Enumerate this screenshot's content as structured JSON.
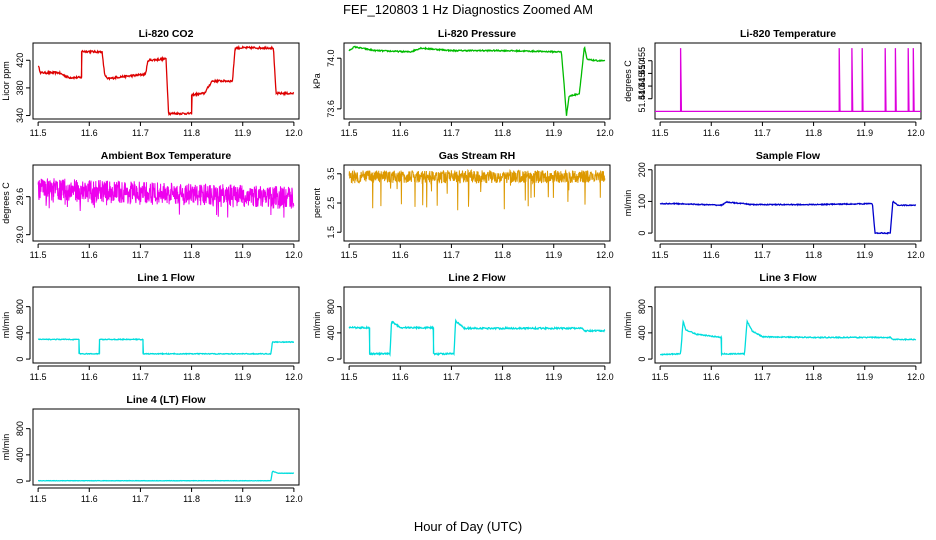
{
  "figure": {
    "title": "FEF_120803  1 Hz Diagnostics Zoomed AM",
    "xlabel": "Hour of Day (UTC)"
  },
  "chart_data": [
    {
      "type": "line",
      "title": "Li-820 CO2",
      "ylabel": "Licor ppm",
      "color": "#dd0000",
      "xlim": [
        11.49,
        12.01
      ],
      "ylim": [
        335,
        445
      ],
      "xticks": [
        "11.5",
        "11.6",
        "11.7",
        "11.8",
        "11.9",
        "12.0"
      ],
      "yticks": [
        "340",
        "380",
        "420"
      ],
      "x": [
        11.5,
        11.505,
        11.54,
        11.56,
        11.585,
        11.585,
        11.625,
        11.63,
        11.635,
        11.66,
        11.69,
        11.71,
        11.715,
        11.75,
        11.755,
        11.8,
        11.8,
        11.825,
        11.84,
        11.88,
        11.885,
        11.96,
        11.965,
        12.0
      ],
      "y": [
        412,
        402,
        402,
        395,
        395,
        433,
        432,
        400,
        393,
        396,
        398,
        400,
        420,
        422,
        343,
        343,
        370,
        372,
        390,
        390,
        438,
        438,
        372,
        372
      ],
      "noise": 1.5
    },
    {
      "type": "line",
      "title": "Li-820 Pressure",
      "ylabel": "kPa",
      "color": "#00bb00",
      "xlim": [
        11.49,
        12.01
      ],
      "ylim": [
        73.52,
        74.12
      ],
      "xticks": [
        "11.5",
        "11.6",
        "11.7",
        "11.8",
        "11.9",
        "12.0"
      ],
      "yticks": [
        "73.6",
        "74.0"
      ],
      "x": [
        11.5,
        11.51,
        11.55,
        11.62,
        11.64,
        11.7,
        11.8,
        11.915,
        11.925,
        11.93,
        11.95,
        11.96,
        11.965,
        11.985,
        12.0
      ],
      "y": [
        74.06,
        74.09,
        74.06,
        74.05,
        74.08,
        74.06,
        74.06,
        74.05,
        73.55,
        73.7,
        73.72,
        74.09,
        73.99,
        73.98,
        73.98
      ],
      "noise": 0.005
    },
    {
      "type": "spikes",
      "title": "Li-820 Temperature",
      "ylabel": "degrees C",
      "color": "#dd00dd",
      "xlim": [
        11.49,
        12.01
      ],
      "ylim": [
        51.432,
        51.462
      ],
      "xticks": [
        "11.5",
        "11.6",
        "11.7",
        "11.8",
        "11.9",
        "12.0"
      ],
      "yticks": [
        "51.440",
        "51.445",
        "51.450",
        "51.455"
      ],
      "baseline": 51.435,
      "peak": 51.46,
      "spike_x": [
        11.54,
        11.85,
        11.875,
        11.895,
        11.94,
        11.96,
        11.985,
        11.995
      ]
    },
    {
      "type": "noisy",
      "title": "Ambient Box Temperature",
      "ylabel": "degrees C",
      "color": "#ee00ee",
      "xlim": [
        11.49,
        12.01
      ],
      "ylim": [
        28.9,
        30.1
      ],
      "xticks": [
        "11.5",
        "11.6",
        "11.7",
        "11.8",
        "11.9",
        "12.0"
      ],
      "yticks": [
        "29.0",
        "29.6"
      ],
      "x": [
        11.5,
        11.7,
        12.0
      ],
      "center": [
        29.72,
        29.66,
        29.58
      ],
      "band": 0.18,
      "dips": 0.35
    },
    {
      "type": "noisy",
      "title": "Gas Stream RH",
      "ylabel": "percent",
      "color": "#dd9900",
      "xlim": [
        11.49,
        12.01
      ],
      "ylim": [
        1.2,
        3.8
      ],
      "xticks": [
        "11.5",
        "11.6",
        "11.7",
        "11.8",
        "11.9",
        "12.0"
      ],
      "yticks": [
        "1.5",
        "2.5",
        "3.5"
      ],
      "x": [
        11.5,
        12.0
      ],
      "center": [
        3.4,
        3.4
      ],
      "band": 0.22,
      "dips": 1.2
    },
    {
      "type": "line",
      "title": "Sample Flow",
      "ylabel": "ml/min",
      "color": "#0000cc",
      "xlim": [
        11.49,
        12.01
      ],
      "ylim": [
        -25,
        215
      ],
      "xticks": [
        "11.5",
        "11.6",
        "11.7",
        "11.8",
        "11.9",
        "12.0"
      ],
      "yticks": [
        "0",
        "100",
        "200"
      ],
      "x": [
        11.5,
        11.53,
        11.62,
        11.63,
        11.68,
        11.8,
        11.915,
        11.92,
        11.95,
        11.955,
        11.965,
        12.0
      ],
      "y": [
        93,
        93,
        88,
        98,
        90,
        90,
        93,
        0,
        0,
        100,
        88,
        88
      ],
      "noise": 1.5
    },
    {
      "type": "line",
      "title": "Line 1 Flow",
      "ylabel": "ml/min",
      "color": "#00dddd",
      "xlim": [
        11.49,
        12.01
      ],
      "ylim": [
        -60,
        1100
      ],
      "xticks": [
        "11.5",
        "11.6",
        "11.7",
        "11.8",
        "11.9",
        "12.0"
      ],
      "yticks": [
        "0",
        "400",
        "800"
      ],
      "x": [
        11.5,
        11.58,
        11.58,
        11.62,
        11.62,
        11.705,
        11.705,
        11.955,
        11.958,
        12.0
      ],
      "y": [
        300,
        300,
        80,
        80,
        300,
        300,
        80,
        80,
        260,
        260
      ],
      "noise": 6
    },
    {
      "type": "line",
      "title": "Line 2 Flow",
      "ylabel": "ml/min",
      "color": "#00dddd",
      "xlim": [
        11.49,
        12.01
      ],
      "ylim": [
        -60,
        1100
      ],
      "xticks": [
        "11.5",
        "11.6",
        "11.7",
        "11.8",
        "11.9",
        "12.0"
      ],
      "yticks": [
        "0",
        "400",
        "800"
      ],
      "x": [
        11.5,
        11.54,
        11.54,
        11.58,
        11.583,
        11.6,
        11.665,
        11.665,
        11.705,
        11.708,
        11.725,
        11.8,
        11.955,
        11.96,
        12.0
      ],
      "y": [
        480,
        480,
        80,
        80,
        580,
        480,
        480,
        80,
        80,
        580,
        470,
        470,
        470,
        430,
        430
      ],
      "noise": 12
    },
    {
      "type": "line",
      "title": "Line 3 Flow",
      "ylabel": "ml/min",
      "color": "#00dddd",
      "xlim": [
        11.49,
        12.01
      ],
      "ylim": [
        -60,
        1100
      ],
      "xticks": [
        "11.5",
        "11.6",
        "11.7",
        "11.8",
        "11.9",
        "12.0"
      ],
      "yticks": [
        "0",
        "400",
        "800"
      ],
      "x": [
        11.5,
        11.54,
        11.545,
        11.55,
        11.57,
        11.62,
        11.62,
        11.665,
        11.67,
        11.68,
        11.7,
        11.8,
        11.95,
        11.955,
        12.0
      ],
      "y": [
        70,
        80,
        580,
        450,
        380,
        330,
        80,
        80,
        580,
        430,
        340,
        330,
        330,
        300,
        300
      ],
      "noise": 8
    },
    {
      "type": "line",
      "title": "Line 4 (LT) Flow",
      "ylabel": "ml/min",
      "color": "#00dddd",
      "xlim": [
        11.49,
        12.01
      ],
      "ylim": [
        -60,
        1100
      ],
      "xticks": [
        "11.5",
        "11.6",
        "11.7",
        "11.8",
        "11.9",
        "12.0"
      ],
      "yticks": [
        "0",
        "400",
        "800"
      ],
      "x": [
        11.5,
        11.955,
        11.958,
        11.97,
        12.0
      ],
      "y": [
        5,
        5,
        150,
        120,
        120
      ],
      "noise": 3
    }
  ]
}
